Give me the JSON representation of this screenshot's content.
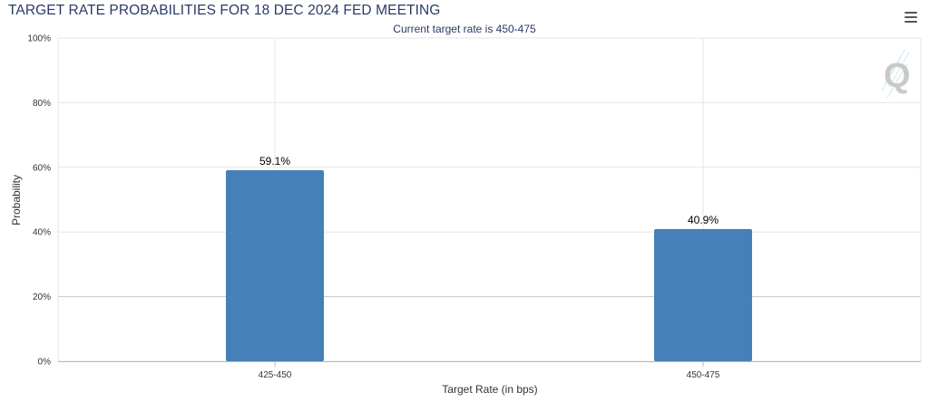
{
  "chart_data": {
    "type": "bar",
    "title": "TARGET RATE PROBABILITIES FOR 18 DEC 2024 FED MEETING",
    "subtitle": "Current target rate is 450-475",
    "xlabel": "Target Rate (in bps)",
    "ylabel": "Probability",
    "categories": [
      "425-450",
      "450-475"
    ],
    "values": [
      59.1,
      40.9
    ],
    "data_labels": [
      "59.1%",
      "40.9%"
    ],
    "ylim": [
      0,
      100
    ],
    "yticks": [
      0,
      20,
      40,
      60,
      80,
      100
    ],
    "ytick_labels": [
      "0%",
      "20%",
      "40%",
      "60%",
      "80%",
      "100%"
    ],
    "bar_color": "#4580b8",
    "grid": true,
    "legend": "none"
  },
  "toolbar": {
    "menu_icon": "hamburger-menu-icon"
  },
  "watermark": {
    "logo_text": "Q"
  }
}
